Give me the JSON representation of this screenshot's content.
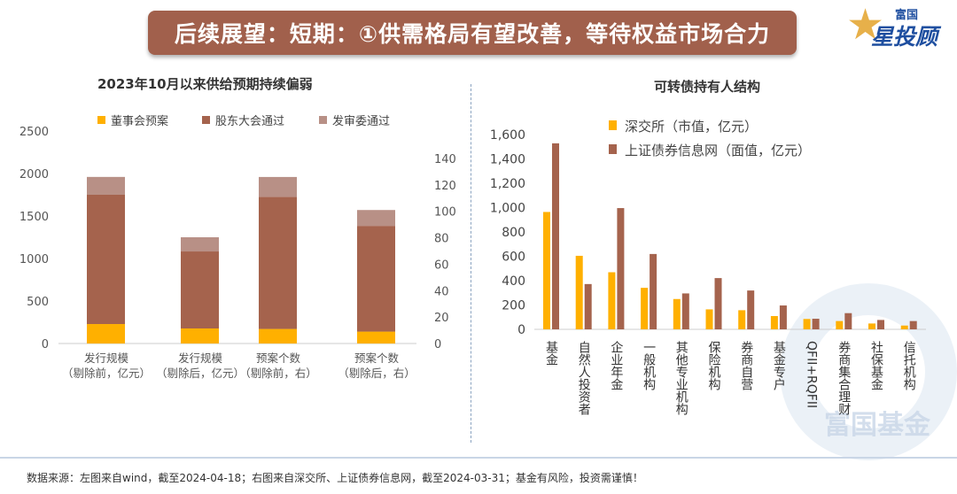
{
  "header": {
    "title": "后续展望：短期：①供需格局有望改善，等待权益市场合力",
    "logo_top": "富国",
    "logo_main": "星投顾"
  },
  "watermark": "富国基金",
  "footer": "数据来源：左图来自wind，截至2024-04-18；右图来自深交所、上证债券信息网，截至2024-03-31；基金有风险，投资需谨慎！",
  "colors": {
    "yellow": "#ffb000",
    "brown": "#a5634d",
    "pink": "#b89086",
    "banner": "#a1604c"
  },
  "chart_data": [
    {
      "type": "bar",
      "stacked": true,
      "title": "2023年10月以来供给预期持续偏弱",
      "categories": [
        [
          "发行规模",
          "（剔除前，亿元）"
        ],
        [
          "发行规模",
          "（剔除后，亿元）"
        ],
        [
          "预案个数",
          "（剔除前，右）"
        ],
        [
          "预案个数",
          "（剔除后，右）"
        ]
      ],
      "axis": [
        "left",
        "left",
        "right",
        "right"
      ],
      "series": [
        {
          "name": "董事会预案",
          "color": "#ffb000",
          "values": [
            229,
            177,
            11,
            9
          ]
        },
        {
          "name": "股东大会通过",
          "color": "#a5634d",
          "values": [
            1521,
            906,
            100,
            80
          ]
        },
        {
          "name": "发审委通过",
          "color": "#b89086",
          "values": [
            210,
            167,
            15,
            12
          ]
        }
      ],
      "ylim_left": [
        0,
        2500
      ],
      "yticks_left": [
        "0",
        "500",
        "1000",
        "1500",
        "2000",
        "2500"
      ],
      "ylim_right": [
        0,
        140
      ],
      "yticks_right": [
        "0",
        "20",
        "40",
        "60",
        "80",
        "100",
        "120",
        "140"
      ],
      "legend": "top",
      "grid": false
    },
    {
      "type": "bar",
      "title": "可转债持有人结构",
      "categories": [
        "基金",
        "自然人投资者",
        "企业年金",
        "一般机构",
        "其他专业机构",
        "保险机构",
        "券商自营",
        "基金专户",
        "QFII+RQFII",
        "券商集合理财",
        "社保基金",
        "信托机构"
      ],
      "series": [
        {
          "name": "深交所（市值，亿元）",
          "color": "#ffb000",
          "values": [
            964,
            604,
            469,
            341,
            249,
            164,
            157,
            109,
            85,
            68,
            48,
            31
          ]
        },
        {
          "name": "上证债券信息网（面值，亿元）",
          "color": "#a5634d",
          "values": [
            1528,
            372,
            996,
            619,
            295,
            421,
            319,
            196,
            87,
            133,
            77,
            68
          ]
        }
      ],
      "ylim": [
        0,
        1600
      ],
      "yticks": [
        "0",
        "200",
        "400",
        "600",
        "800",
        "1,000",
        "1,200",
        "1,400",
        "1,600"
      ],
      "legend": "top",
      "grid": false
    }
  ]
}
